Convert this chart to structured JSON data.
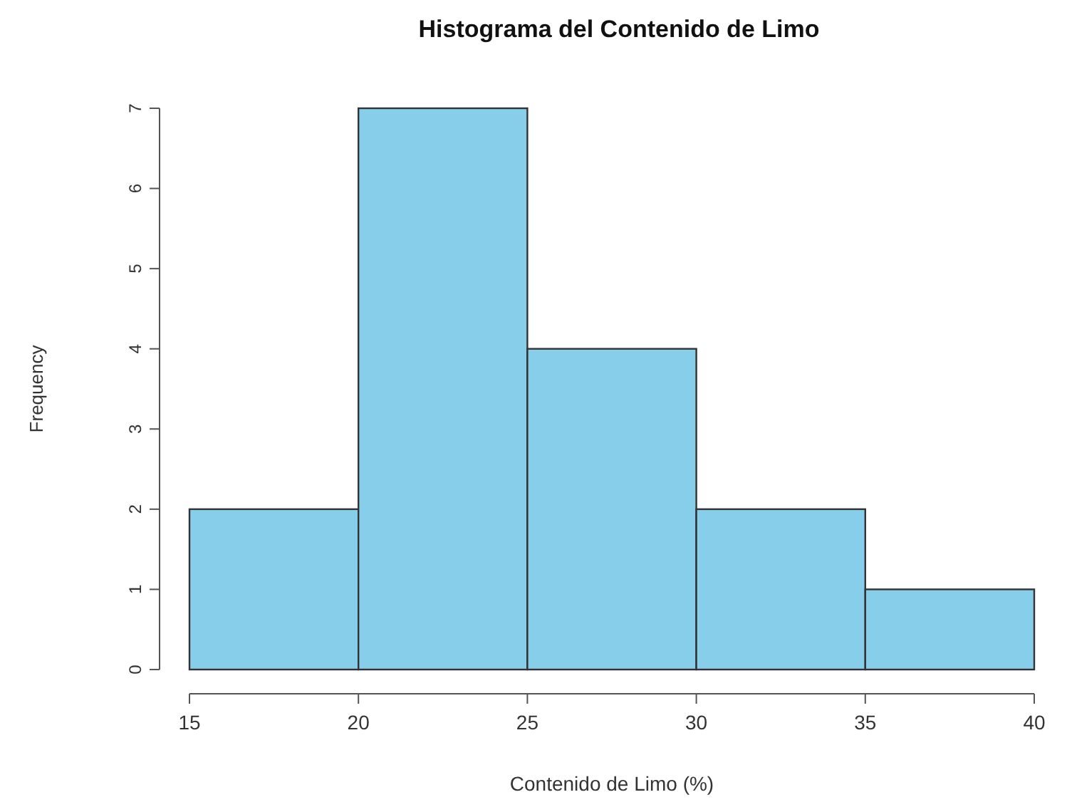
{
  "chart_data": {
    "type": "histogram",
    "title": "Histograma del Contenido de Limo",
    "xlabel": "Contenido de Limo (%)",
    "ylabel": "Frequency",
    "bins": [
      15,
      20,
      25,
      30,
      35,
      40
    ],
    "values": [
      2,
      7,
      4,
      2,
      1
    ],
    "color": "#87ceeb",
    "xlim": [
      15,
      40
    ],
    "xticks": [
      15,
      20,
      25,
      30,
      35,
      40
    ],
    "ylim": [
      0,
      7
    ],
    "yticks": [
      0,
      1,
      2,
      3,
      4,
      5,
      6,
      7
    ]
  }
}
